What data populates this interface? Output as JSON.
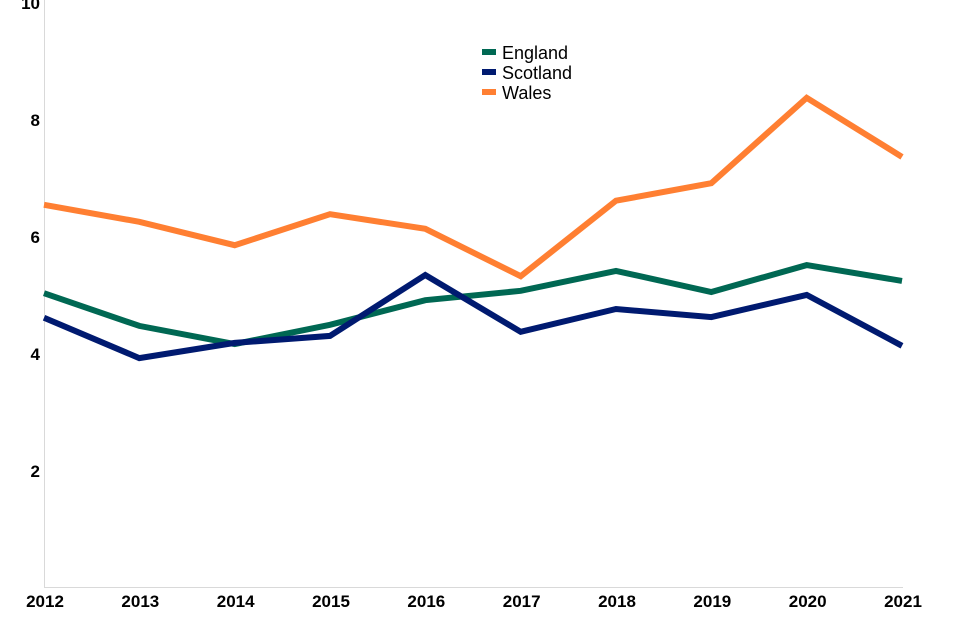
{
  "chart_data": {
    "type": "line",
    "title": "",
    "xlabel": "",
    "ylabel": "",
    "x": [
      "2012",
      "2013",
      "2014",
      "2015",
      "2016",
      "2017",
      "2018",
      "2019",
      "2020",
      "2021"
    ],
    "ylim": [
      0,
      10
    ],
    "yticks": [
      2,
      4,
      6,
      8,
      10
    ],
    "grid": false,
    "legend_position": "top-center",
    "series": [
      {
        "name": "England",
        "color": "#006853",
        "values": [
          5.04,
          4.48,
          4.17,
          4.5,
          4.92,
          5.08,
          5.42,
          5.06,
          5.52,
          5.25
        ]
      },
      {
        "name": "Scotland",
        "color": "#001a70",
        "values": [
          4.62,
          3.93,
          4.19,
          4.31,
          5.35,
          4.38,
          4.77,
          4.63,
          5.01,
          4.14
        ]
      },
      {
        "name": "Wales",
        "color": "#ff7f32",
        "values": [
          6.55,
          6.26,
          5.86,
          6.39,
          6.14,
          5.33,
          6.62,
          6.92,
          8.38,
          7.37
        ]
      }
    ]
  }
}
